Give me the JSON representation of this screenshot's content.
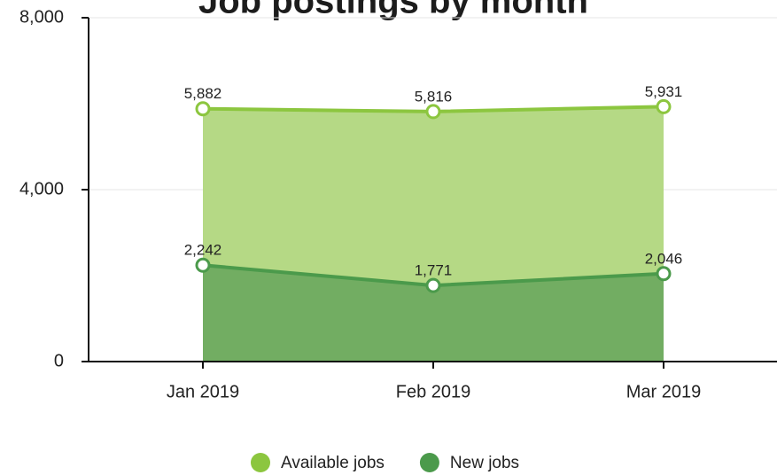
{
  "chart_data": {
    "type": "area",
    "title": "Job postings by month",
    "categories": [
      "Jan 2019",
      "Feb 2019",
      "Mar 2019"
    ],
    "series": [
      {
        "name": "Available jobs",
        "color": "#8cc63f",
        "values": [
          5882,
          5816,
          5931
        ],
        "value_labels": [
          "5,882",
          "5,816",
          "5,931"
        ]
      },
      {
        "name": "New jobs",
        "color": "#4b9a4b",
        "values": [
          2242,
          1771,
          2046
        ],
        "value_labels": [
          "2,242",
          "1,771",
          "2,046"
        ]
      }
    ],
    "ylim": [
      0,
      8000
    ],
    "yticks": [
      0,
      {
        "value": 4000,
        "label": "4,000"
      },
      {
        "value": 8000,
        "label": "8,000"
      }
    ],
    "grid": true
  }
}
